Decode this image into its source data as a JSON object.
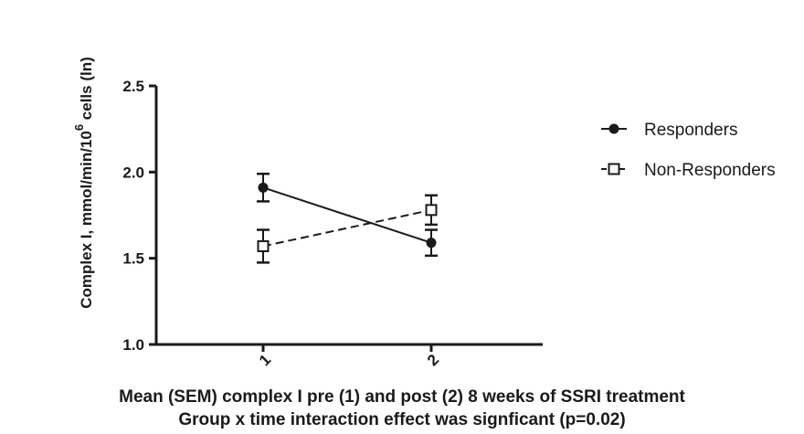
{
  "chart_data": {
    "type": "line",
    "ylabel_main": "Complex I, mmol/min/10",
    "ylabel_sup": "6",
    "ylabel_tail": " cells (ln)",
    "x_categories": [
      "1",
      "2"
    ],
    "ylim": [
      1.0,
      2.5
    ],
    "yticks": [
      "1.0",
      "1.5",
      "2.0",
      "2.5"
    ],
    "ytick_values": [
      1.0,
      1.5,
      2.0,
      2.5
    ],
    "grid": false,
    "legend_position": "right",
    "series": [
      {
        "name": "Responders",
        "marker": "filled-circle",
        "line": "solid",
        "values": [
          1.91,
          1.59
        ],
        "errors": [
          0.08,
          0.075
        ]
      },
      {
        "name": "Non-Responders",
        "marker": "open-square",
        "line": "dashed",
        "values": [
          1.57,
          1.78
        ],
        "errors": [
          0.095,
          0.085
        ]
      }
    ],
    "caption_line1": "Mean (SEM) complex I pre (1) and post (2) 8 weeks of SSRI treatment",
    "caption_line2": "Group x time interaction effect was signficant (p=0.02)"
  },
  "colors": {
    "ink": "#1a1a1a",
    "background": "#ffffff"
  }
}
